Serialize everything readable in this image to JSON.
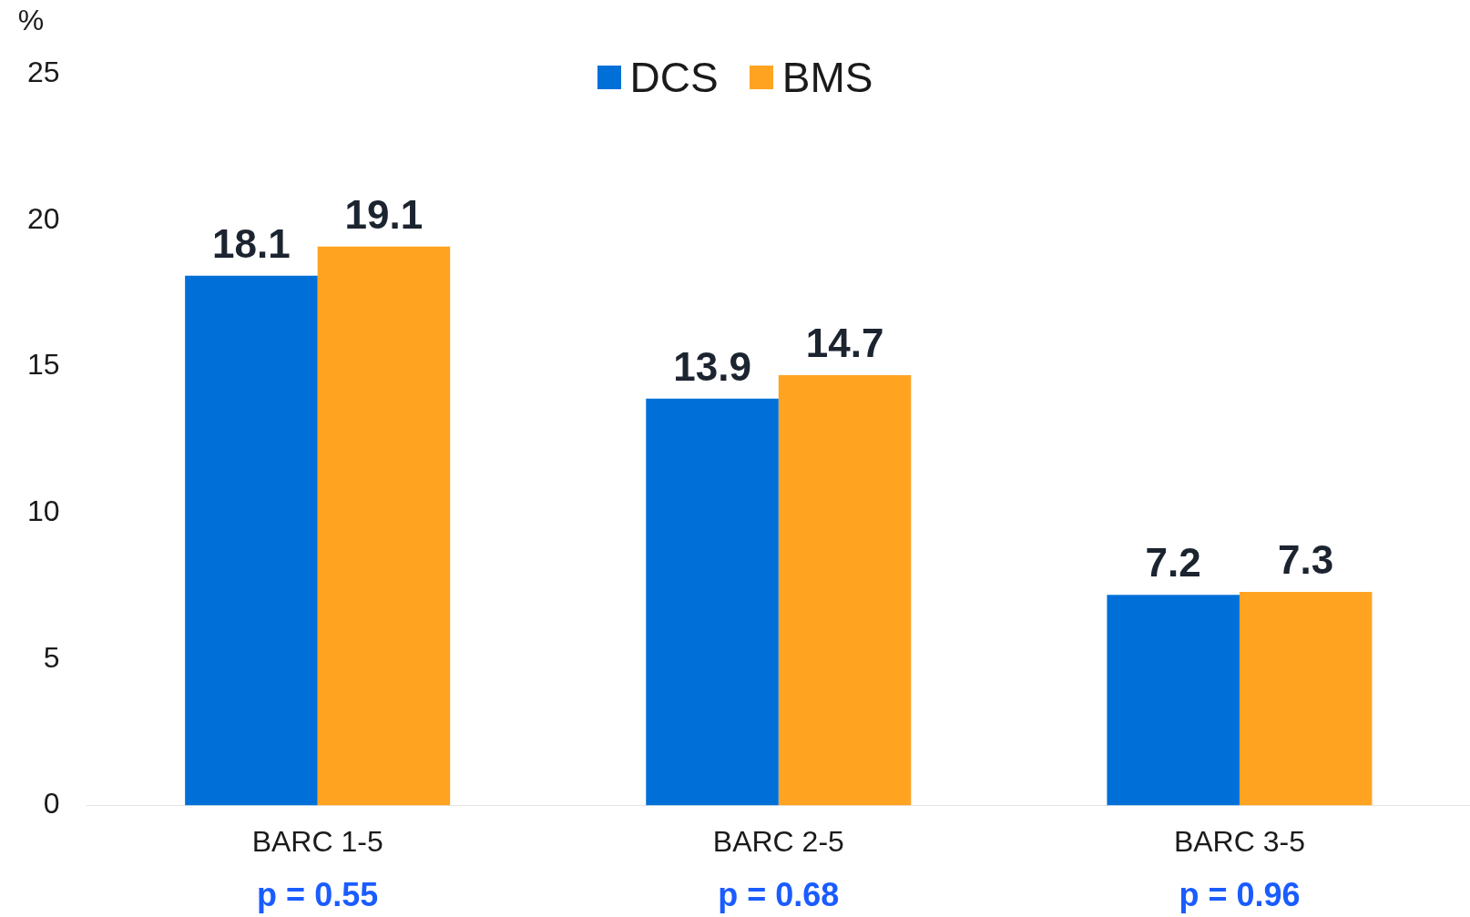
{
  "chart_data": {
    "type": "bar",
    "ylabel": "%",
    "categories": [
      "BARC 1-5",
      "BARC 2-5",
      "BARC 3-5"
    ],
    "series": [
      {
        "name": "DCS",
        "color": "#0070d8",
        "values": [
          18.1,
          13.9,
          7.2
        ]
      },
      {
        "name": "BMS",
        "color": "#ffa321",
        "values": [
          19.1,
          14.7,
          7.3
        ]
      }
    ],
    "ylim": [
      0,
      25
    ],
    "yticks": [
      0,
      5,
      10,
      15,
      20,
      25
    ],
    "grid": false,
    "legend": "top",
    "data_labels": true,
    "annotations": [
      "p = 0.55",
      "p = 0.68",
      "p = 0.96"
    ]
  }
}
